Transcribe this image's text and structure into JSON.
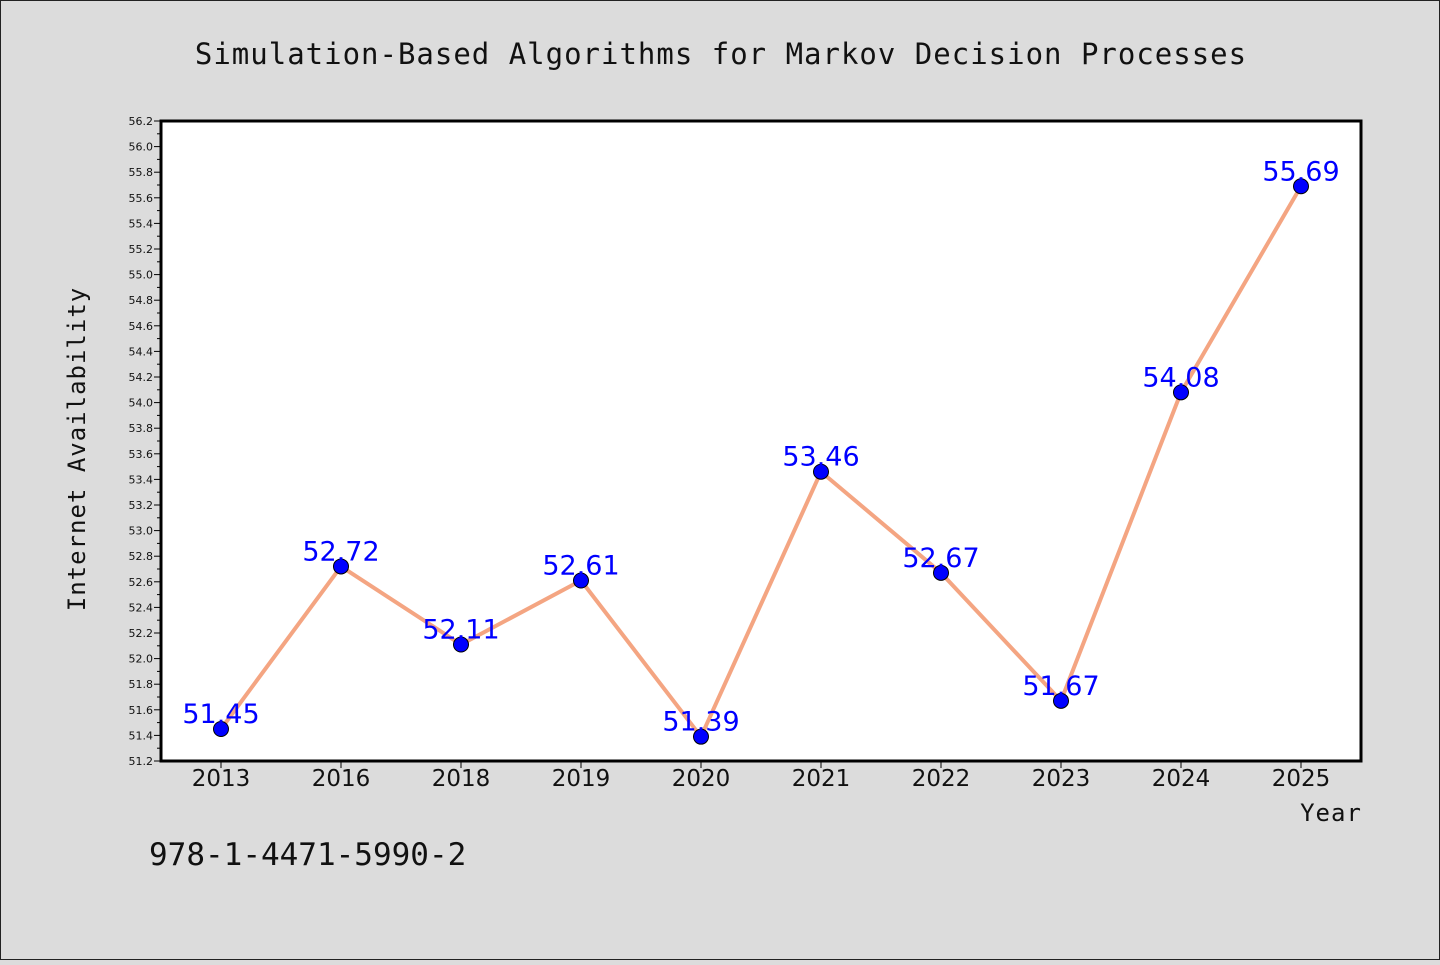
{
  "chart_data": {
    "type": "line",
    "title": "Simulation-Based Algorithms for Markov Decision Processes",
    "xlabel": "Year",
    "ylabel": "Internet Availability",
    "categories": [
      "2013",
      "2016",
      "2018",
      "2019",
      "2020",
      "2021",
      "2022",
      "2023",
      "2024",
      "2025"
    ],
    "series": [
      {
        "values": [
          51.45,
          52.72,
          52.11,
          52.61,
          51.39,
          53.46,
          52.67,
          51.67,
          54.08,
          55.69
        ]
      }
    ],
    "data_labels": [
      "51.45",
      "52.72",
      "52.11",
      "52.61",
      "51.39",
      "53.46",
      "52.67",
      "51.67",
      "54.08",
      "55.69"
    ],
    "ylim": [
      51.2,
      56.2
    ],
    "y_ticks": [
      "51.2",
      "51.4",
      "51.6",
      "51.8",
      "52.0",
      "52.2",
      "52.4",
      "52.6",
      "52.8",
      "53.0",
      "53.2",
      "53.4",
      "53.6",
      "53.8",
      "54.0",
      "54.2",
      "54.4",
      "54.6",
      "54.8",
      "55.0",
      "55.2",
      "55.4",
      "55.6",
      "55.8",
      "56.0",
      "56.2"
    ],
    "grid": false,
    "line_color": "#f4a582",
    "marker_color": "#0000ff",
    "label_color": "#0000ff"
  },
  "footer": {
    "isbn": "978-1-4471-5990-2"
  }
}
